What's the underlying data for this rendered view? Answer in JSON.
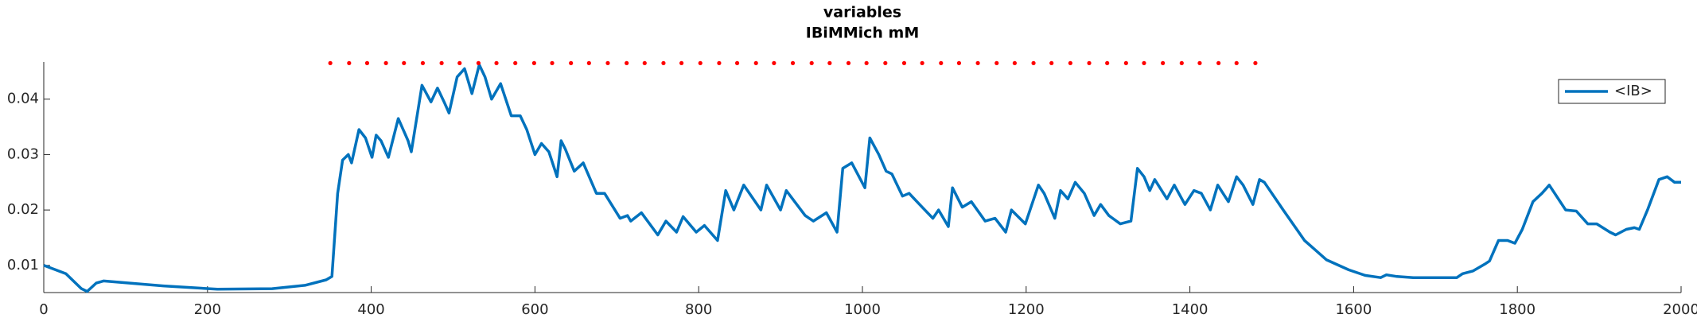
{
  "chart_data": {
    "type": "line",
    "title": "variables",
    "subtitle": "IBiMMich mM",
    "xlim": [
      0,
      2000
    ],
    "xticks": [
      0,
      200,
      400,
      600,
      800,
      1000,
      1200,
      1400,
      1600,
      1800,
      2000
    ],
    "ylim": [
      0.0051,
      0.0467
    ],
    "yticks": [
      0.01,
      0.02,
      0.03,
      0.04
    ],
    "legend": "upper right",
    "series": [
      {
        "name": "<IB>",
        "color": "#0072bd",
        "style": "line",
        "x": [
          0,
          27,
          46,
          53,
          64,
          73,
          146,
          212,
          279,
          319,
          345,
          352,
          359,
          365,
          372,
          376,
          385,
          393,
          401,
          406,
          412,
          421,
          433,
          445,
          449,
          462,
          473,
          481,
          489,
          495,
          505,
          514,
          523,
          532,
          539,
          547,
          558,
          571,
          582,
          590,
          600,
          608,
          617,
          627,
          632,
          637,
          648,
          659,
          675,
          685,
          704,
          713,
          717,
          730,
          750,
          760,
          773,
          781,
          797,
          807,
          823,
          833,
          843,
          855,
          876,
          883,
          900,
          907,
          930,
          940,
          956,
          969,
          976,
          987,
          1003,
          1009,
          1020,
          1029,
          1036,
          1049,
          1057,
          1073,
          1086,
          1093,
          1105,
          1110,
          1122,
          1133,
          1150,
          1162,
          1175,
          1182,
          1199,
          1215,
          1222,
          1235,
          1242,
          1251,
          1260,
          1271,
          1283,
          1291,
          1301,
          1315,
          1328,
          1336,
          1344,
          1351,
          1357,
          1372,
          1381,
          1394,
          1405,
          1414,
          1425,
          1434,
          1447,
          1457,
          1465,
          1477,
          1485,
          1491,
          1514,
          1540,
          1567,
          1594,
          1614,
          1633,
          1640,
          1653,
          1673,
          1726,
          1733,
          1746,
          1760,
          1766,
          1777,
          1788,
          1797,
          1806,
          1819,
          1830,
          1839,
          1859,
          1872,
          1886,
          1897,
          1913,
          1920,
          1933,
          1943,
          1949,
          1959,
          1973,
          1983,
          1992,
          2000
        ],
        "values": [
          0.01,
          0.0085,
          0.0058,
          0.0053,
          0.0068,
          0.0072,
          0.0063,
          0.0057,
          0.0058,
          0.0064,
          0.0074,
          0.008,
          0.023,
          0.029,
          0.03,
          0.0285,
          0.0345,
          0.033,
          0.0295,
          0.0335,
          0.0325,
          0.0295,
          0.0365,
          0.0325,
          0.0305,
          0.0425,
          0.0395,
          0.042,
          0.0395,
          0.0375,
          0.044,
          0.0455,
          0.041,
          0.0462,
          0.044,
          0.04,
          0.0428,
          0.037,
          0.037,
          0.0345,
          0.03,
          0.032,
          0.0305,
          0.026,
          0.0325,
          0.031,
          0.027,
          0.0285,
          0.023,
          0.023,
          0.0185,
          0.019,
          0.018,
          0.0195,
          0.0155,
          0.018,
          0.016,
          0.0188,
          0.016,
          0.0172,
          0.0145,
          0.0235,
          0.02,
          0.0245,
          0.02,
          0.0245,
          0.02,
          0.0235,
          0.019,
          0.018,
          0.0195,
          0.016,
          0.0275,
          0.0285,
          0.024,
          0.033,
          0.03,
          0.027,
          0.0265,
          0.0225,
          0.023,
          0.0205,
          0.0185,
          0.02,
          0.017,
          0.024,
          0.0205,
          0.0215,
          0.018,
          0.0185,
          0.016,
          0.02,
          0.0175,
          0.0245,
          0.023,
          0.0185,
          0.0235,
          0.022,
          0.025,
          0.023,
          0.019,
          0.021,
          0.019,
          0.0175,
          0.018,
          0.0275,
          0.026,
          0.0235,
          0.0255,
          0.022,
          0.0245,
          0.021,
          0.0235,
          0.023,
          0.02,
          0.0245,
          0.0215,
          0.026,
          0.0245,
          0.021,
          0.0255,
          0.025,
          0.02,
          0.0145,
          0.011,
          0.0092,
          0.0082,
          0.0078,
          0.0083,
          0.008,
          0.0078,
          0.0078,
          0.0085,
          0.009,
          0.0102,
          0.0108,
          0.0145,
          0.0145,
          0.014,
          0.0165,
          0.0215,
          0.023,
          0.0245,
          0.02,
          0.0198,
          0.0175,
          0.0175,
          0.016,
          0.0155,
          0.0165,
          0.0168,
          0.0165,
          0.02,
          0.0255,
          0.026,
          0.025,
          0.025
        ]
      },
      {
        "color": "#ff0000",
        "style": "dots",
        "x": [
          350,
          373,
          395,
          418,
          440,
          463,
          486,
          508,
          531,
          553,
          576,
          599,
          621,
          644,
          666,
          689,
          712,
          734,
          757,
          779,
          802,
          825,
          847,
          870,
          892,
          915,
          938,
          960,
          983,
          1005,
          1028,
          1051,
          1073,
          1096,
          1118,
          1141,
          1164,
          1186,
          1209,
          1231,
          1254,
          1277,
          1299,
          1322,
          1344,
          1367,
          1390,
          1412,
          1435,
          1457,
          1480
        ],
        "values": [
          0.0465,
          0.0465,
          0.0465,
          0.0465,
          0.0465,
          0.0465,
          0.0465,
          0.0465,
          0.0465,
          0.0465,
          0.0465,
          0.0465,
          0.0465,
          0.0465,
          0.0465,
          0.0465,
          0.0465,
          0.0465,
          0.0465,
          0.0465,
          0.0465,
          0.0465,
          0.0465,
          0.0465,
          0.0465,
          0.0465,
          0.0465,
          0.0465,
          0.0465,
          0.0465,
          0.0465,
          0.0465,
          0.0465,
          0.0465,
          0.0465,
          0.0465,
          0.0465,
          0.0465,
          0.0465,
          0.0465,
          0.0465,
          0.0465,
          0.0465,
          0.0465,
          0.0465,
          0.0465,
          0.0465,
          0.0465,
          0.0465,
          0.0465,
          0.0465
        ]
      }
    ]
  }
}
